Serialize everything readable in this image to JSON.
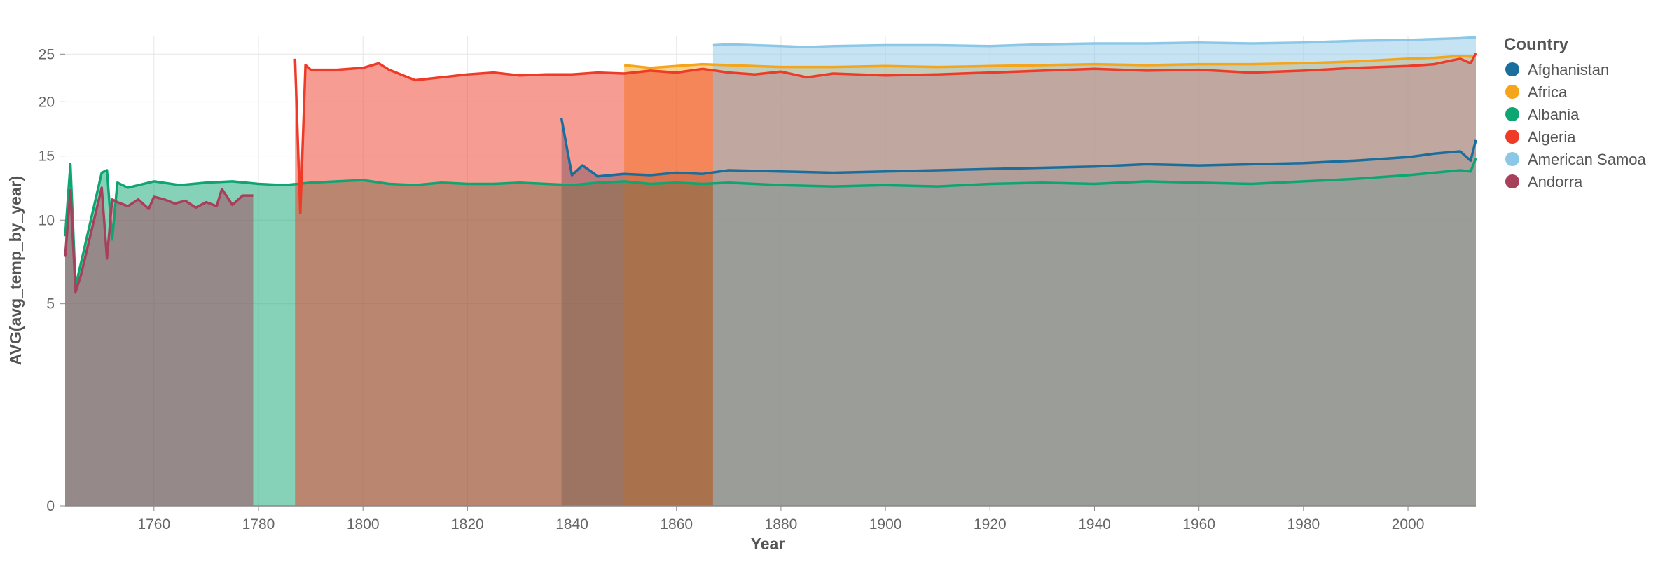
{
  "chart_data": {
    "type": "area",
    "xlabel": "Year",
    "ylabel": "AVG(avg_temp_by_year)",
    "xlim": [
      1743,
      2013
    ],
    "ylim": [
      0,
      27
    ],
    "y_scale": "sqrt",
    "x_ticks": [
      1760,
      1780,
      1800,
      1820,
      1840,
      1860,
      1880,
      1900,
      1920,
      1940,
      1960,
      1980,
      2000
    ],
    "y_ticks": [
      0,
      5,
      10,
      15,
      20,
      25
    ],
    "grid": true,
    "legend": {
      "title": "Country",
      "position": "right"
    },
    "series": [
      {
        "name": "Afghanistan",
        "color": "#1a6e9c",
        "x": [
          1838,
          1840,
          1842,
          1845,
          1850,
          1855,
          1860,
          1865,
          1870,
          1880,
          1890,
          1900,
          1910,
          1920,
          1930,
          1940,
          1950,
          1960,
          1970,
          1980,
          1990,
          2000,
          2005,
          2010,
          2012,
          2013
        ],
        "y": [
          18.4,
          13.4,
          14.2,
          13.3,
          13.5,
          13.4,
          13.6,
          13.5,
          13.8,
          13.7,
          13.6,
          13.7,
          13.8,
          13.9,
          14.0,
          14.1,
          14.3,
          14.2,
          14.3,
          14.4,
          14.6,
          14.9,
          15.2,
          15.4,
          14.6,
          16.4
        ]
      },
      {
        "name": "Africa",
        "color": "#f5a51c",
        "x": [
          1850,
          1855,
          1860,
          1865,
          1870,
          1880,
          1890,
          1900,
          1910,
          1920,
          1930,
          1940,
          1950,
          1960,
          1970,
          1980,
          1990,
          2000,
          2005,
          2010,
          2013
        ],
        "y": [
          23.8,
          23.5,
          23.7,
          23.9,
          23.8,
          23.6,
          23.6,
          23.7,
          23.6,
          23.7,
          23.8,
          23.9,
          23.8,
          23.9,
          23.9,
          24.0,
          24.2,
          24.5,
          24.6,
          24.8,
          24.7
        ]
      },
      {
        "name": "Albania",
        "color": "#0da672",
        "x": [
          1743,
          1744,
          1745,
          1750,
          1751,
          1752,
          1753,
          1755,
          1760,
          1765,
          1770,
          1775,
          1780,
          1785,
          1790,
          1795,
          1800,
          1805,
          1810,
          1815,
          1820,
          1825,
          1830,
          1835,
          1840,
          1845,
          1850,
          1855,
          1860,
          1865,
          1870,
          1880,
          1890,
          1900,
          1910,
          1920,
          1930,
          1940,
          1950,
          1960,
          1970,
          1980,
          1990,
          2000,
          2005,
          2010,
          2012,
          2013
        ],
        "y": [
          8.9,
          14.3,
          5.9,
          13.6,
          13.8,
          8.7,
          12.8,
          12.4,
          12.9,
          12.6,
          12.8,
          12.9,
          12.7,
          12.6,
          12.8,
          12.9,
          13.0,
          12.7,
          12.6,
          12.8,
          12.7,
          12.7,
          12.8,
          12.7,
          12.6,
          12.8,
          12.9,
          12.7,
          12.8,
          12.7,
          12.8,
          12.6,
          12.5,
          12.6,
          12.5,
          12.7,
          12.8,
          12.7,
          12.9,
          12.8,
          12.7,
          12.9,
          13.1,
          13.4,
          13.6,
          13.8,
          13.7,
          14.8
        ]
      },
      {
        "name": "Algeria",
        "color": "#ee3a26",
        "x": [
          1787,
          1788,
          1789,
          1790,
          1795,
          1800,
          1803,
          1805,
          1810,
          1815,
          1820,
          1825,
          1830,
          1835,
          1840,
          1845,
          1850,
          1855,
          1860,
          1865,
          1870,
          1875,
          1880,
          1885,
          1890,
          1900,
          1910,
          1920,
          1930,
          1940,
          1950,
          1960,
          1970,
          1980,
          1990,
          2000,
          2005,
          2010,
          2012,
          2013
        ],
        "y": [
          24.5,
          10.5,
          23.8,
          23.3,
          23.3,
          23.5,
          24.0,
          23.3,
          22.2,
          22.5,
          22.8,
          23.0,
          22.7,
          22.8,
          22.8,
          23.0,
          22.9,
          23.2,
          23.0,
          23.4,
          23.0,
          22.8,
          23.1,
          22.5,
          22.9,
          22.7,
          22.8,
          23.0,
          23.2,
          23.4,
          23.2,
          23.3,
          23.0,
          23.2,
          23.5,
          23.7,
          23.9,
          24.5,
          24.0,
          25.1
        ]
      },
      {
        "name": "American Samoa",
        "color": "#8cc8e6",
        "x": [
          1867,
          1870,
          1875,
          1880,
          1885,
          1890,
          1900,
          1910,
          1920,
          1930,
          1940,
          1950,
          1960,
          1970,
          1980,
          1990,
          2000,
          2005,
          2010,
          2013
        ],
        "y": [
          26.0,
          26.1,
          26.0,
          25.9,
          25.8,
          25.9,
          26.0,
          26.0,
          25.9,
          26.1,
          26.2,
          26.2,
          26.3,
          26.2,
          26.3,
          26.5,
          26.6,
          26.7,
          26.8,
          26.9
        ]
      },
      {
        "name": "Andorra",
        "color": "#a6405b",
        "x": [
          1743,
          1744,
          1745,
          1746,
          1750,
          1751,
          1752,
          1753,
          1755,
          1757,
          1759,
          1760,
          1762,
          1764,
          1766,
          1768,
          1770,
          1772,
          1773,
          1775,
          1777,
          1779
        ],
        "y": [
          7.6,
          12.2,
          5.6,
          6.5,
          12.4,
          7.5,
          11.5,
          11.3,
          11.0,
          11.5,
          10.8,
          11.7,
          11.5,
          11.2,
          11.4,
          10.9,
          11.3,
          11.0,
          12.3,
          11.1,
          11.8,
          11.8
        ]
      }
    ]
  }
}
